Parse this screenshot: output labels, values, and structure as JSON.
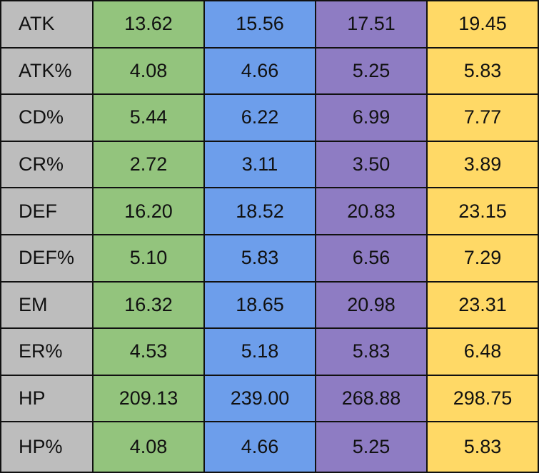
{
  "table": {
    "column_colors": [
      "#93c47d",
      "#6d9eeb",
      "#8e7cc3",
      "#ffd966"
    ],
    "label_color": "#bdbdbd",
    "rows": [
      {
        "label": "ATK",
        "values": [
          "13.62",
          "15.56",
          "17.51",
          "19.45"
        ]
      },
      {
        "label": "ATK%",
        "values": [
          "4.08",
          "4.66",
          "5.25",
          "5.83"
        ]
      },
      {
        "label": "CD%",
        "values": [
          "5.44",
          "6.22",
          "6.99",
          "7.77"
        ]
      },
      {
        "label": "CR%",
        "values": [
          "2.72",
          "3.11",
          "3.50",
          "3.89"
        ]
      },
      {
        "label": "DEF",
        "values": [
          "16.20",
          "18.52",
          "20.83",
          "23.15"
        ]
      },
      {
        "label": "DEF%",
        "values": [
          "5.10",
          "5.83",
          "6.56",
          "7.29"
        ]
      },
      {
        "label": "EM",
        "values": [
          "16.32",
          "18.65",
          "20.98",
          "23.31"
        ]
      },
      {
        "label": "ER%",
        "values": [
          "4.53",
          "5.18",
          "5.83",
          "6.48"
        ]
      },
      {
        "label": "HP",
        "values": [
          "209.13",
          "239.00",
          "268.88",
          "298.75"
        ]
      },
      {
        "label": "HP%",
        "values": [
          "4.08",
          "4.66",
          "5.25",
          "5.83"
        ]
      }
    ]
  }
}
